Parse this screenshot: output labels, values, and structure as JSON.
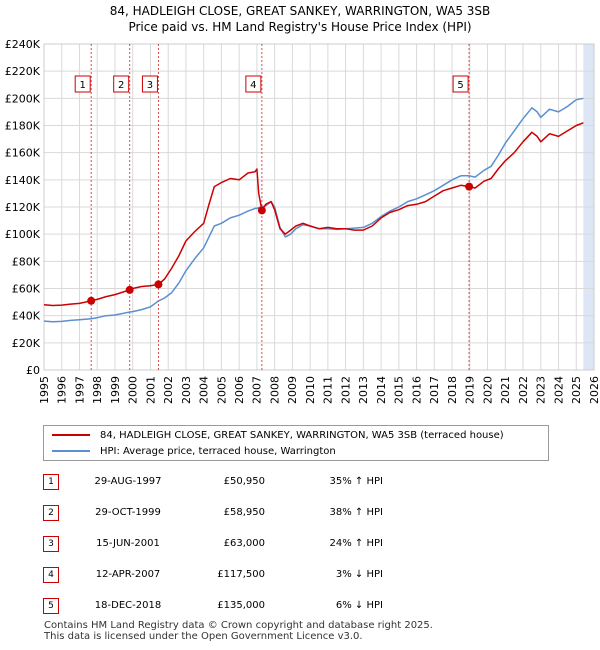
{
  "title": {
    "line1": "84, HADLEIGH CLOSE, GREAT SANKEY, WARRINGTON, WA5 3SB",
    "line2": "Price paid vs. HM Land Registry's House Price Index (HPI)"
  },
  "chart_data": {
    "type": "line",
    "xlim": [
      1995,
      2026
    ],
    "ylim": [
      0,
      240000
    ],
    "yticks": [
      0,
      20000,
      40000,
      60000,
      80000,
      100000,
      120000,
      140000,
      160000,
      180000,
      200000,
      220000,
      240000
    ],
    "ytick_labels": [
      "£0",
      "£20K",
      "£40K",
      "£60K",
      "£80K",
      "£100K",
      "£120K",
      "£140K",
      "£160K",
      "£180K",
      "£200K",
      "£220K",
      "£240K"
    ],
    "xticks": [
      1995,
      1996,
      1997,
      1998,
      1999,
      2000,
      2001,
      2002,
      2003,
      2004,
      2005,
      2006,
      2007,
      2008,
      2009,
      2010,
      2011,
      2012,
      2013,
      2014,
      2015,
      2016,
      2017,
      2018,
      2019,
      2020,
      2021,
      2022,
      2023,
      2024,
      2025,
      2026
    ],
    "grid": true,
    "future_shade_start": 2025.4,
    "colors": {
      "property": "#cc0000",
      "hpi": "#5b8fd0",
      "shade": "#dde6f4",
      "grid": "#d9d9d9",
      "marker_line": "#cc0000"
    },
    "series": [
      {
        "name": "84, HADLEIGH CLOSE, GREAT SANKEY, WARRINGTON, WA5 3SB (terraced house)",
        "x": [
          1995.0,
          1995.5,
          1996.0,
          1996.5,
          1997.0,
          1997.66,
          1998.0,
          1998.5,
          1999.0,
          1999.83,
          2000.0,
          2000.5,
          2001.0,
          2001.45,
          2001.8,
          2002.2,
          2002.6,
          2003.0,
          2003.5,
          2004.0,
          2004.3,
          2004.6,
          2005.0,
          2005.5,
          2006.0,
          2006.5,
          2006.9,
          2007.0,
          2007.1,
          2007.28,
          2007.5,
          2007.8,
          2008.0,
          2008.3,
          2008.6,
          2008.9,
          2009.2,
          2009.6,
          2010.0,
          2010.5,
          2011.0,
          2011.5,
          2012.0,
          2012.5,
          2013.0,
          2013.5,
          2014.0,
          2014.5,
          2015.0,
          2015.5,
          2016.0,
          2016.5,
          2017.0,
          2017.5,
          2018.0,
          2018.5,
          2018.96,
          2019.3,
          2019.8,
          2020.2,
          2020.6,
          2021.0,
          2021.5,
          2022.0,
          2022.5,
          2022.8,
          2023.0,
          2023.5,
          2024.0,
          2024.5,
          2025.0,
          2025.4
        ],
        "values": [
          48000,
          47500,
          47800,
          48500,
          49000,
          50950,
          52000,
          54000,
          55500,
          58950,
          60000,
          61500,
          62000,
          63000,
          67000,
          75000,
          84000,
          95000,
          102000,
          108000,
          122000,
          135000,
          138000,
          141000,
          140000,
          145000,
          146000,
          148000,
          130000,
          117500,
          122000,
          124000,
          118000,
          104000,
          100000,
          103000,
          106000,
          108000,
          106000,
          104000,
          105000,
          104000,
          104000,
          103000,
          103000,
          106000,
          112000,
          116000,
          118000,
          121000,
          122000,
          124000,
          128000,
          132000,
          134000,
          136000,
          135000,
          134000,
          139000,
          141000,
          148000,
          154000,
          160000,
          168000,
          175000,
          172000,
          168000,
          174000,
          172000,
          176000,
          180000,
          182000
        ]
      },
      {
        "name": "HPI: Average price, terraced house, Warrington",
        "x": [
          1995.0,
          1995.5,
          1996.0,
          1996.5,
          1997.0,
          1997.66,
          1998.0,
          1998.5,
          1999.0,
          1999.83,
          2000.0,
          2000.5,
          2001.0,
          2001.45,
          2001.8,
          2002.2,
          2002.6,
          2003.0,
          2003.5,
          2004.0,
          2004.3,
          2004.6,
          2005.0,
          2005.5,
          2006.0,
          2006.5,
          2006.9,
          2007.0,
          2007.1,
          2007.28,
          2007.5,
          2007.8,
          2008.0,
          2008.3,
          2008.6,
          2008.9,
          2009.2,
          2009.6,
          2010.0,
          2010.5,
          2011.0,
          2011.5,
          2012.0,
          2012.5,
          2013.0,
          2013.5,
          2014.0,
          2014.5,
          2015.0,
          2015.5,
          2016.0,
          2016.5,
          2017.0,
          2017.5,
          2018.0,
          2018.5,
          2018.96,
          2019.3,
          2019.8,
          2020.2,
          2020.6,
          2021.0,
          2021.5,
          2022.0,
          2022.5,
          2022.8,
          2023.0,
          2023.5,
          2024.0,
          2024.5,
          2025.0,
          2025.4
        ],
        "values": [
          36000,
          35500,
          35800,
          36500,
          37000,
          37700,
          38500,
          40000,
          40500,
          42700,
          43000,
          44500,
          46500,
          50800,
          53000,
          57000,
          64000,
          73000,
          82000,
          90000,
          98000,
          106000,
          108000,
          112000,
          114000,
          117000,
          119000,
          119000,
          119500,
          120000,
          121000,
          124000,
          120000,
          105000,
          98000,
          100000,
          104000,
          107000,
          106000,
          104000,
          104000,
          103500,
          104000,
          104500,
          105000,
          108000,
          113000,
          117000,
          120000,
          124000,
          126000,
          129000,
          132000,
          136000,
          140000,
          143000,
          143000,
          142000,
          147000,
          150000,
          158000,
          167000,
          176000,
          185000,
          193000,
          190000,
          186000,
          192000,
          190000,
          194000,
          199000,
          200000
        ]
      }
    ],
    "sale_markers": [
      {
        "label": "1",
        "x": 1997.66,
        "y": 50950
      },
      {
        "label": "2",
        "x": 1999.83,
        "y": 58950
      },
      {
        "label": "3",
        "x": 2001.45,
        "y": 63000
      },
      {
        "label": "4",
        "x": 2007.28,
        "y": 117500
      },
      {
        "label": "5",
        "x": 2018.96,
        "y": 135000
      }
    ]
  },
  "legend": {
    "property": "84, HADLEIGH CLOSE, GREAT SANKEY, WARRINGTON, WA5 3SB (terraced house)",
    "hpi": "HPI: Average price, terraced house, Warrington"
  },
  "sales": [
    {
      "num": "1",
      "date": "29-AUG-1997",
      "price": "£50,950",
      "hpi": "35% ↑ HPI"
    },
    {
      "num": "2",
      "date": "29-OCT-1999",
      "price": "£58,950",
      "hpi": "38% ↑ HPI"
    },
    {
      "num": "3",
      "date": "15-JUN-2001",
      "price": "£63,000",
      "hpi": "24% ↑ HPI"
    },
    {
      "num": "4",
      "date": "12-APR-2007",
      "price": "£117,500",
      "hpi": "3% ↓ HPI"
    },
    {
      "num": "5",
      "date": "18-DEC-2018",
      "price": "£135,000",
      "hpi": "6% ↓ HPI"
    }
  ],
  "footer": {
    "line1": "Contains HM Land Registry data © Crown copyright and database right 2025.",
    "line2": "This data is licensed under the Open Government Licence v3.0."
  }
}
